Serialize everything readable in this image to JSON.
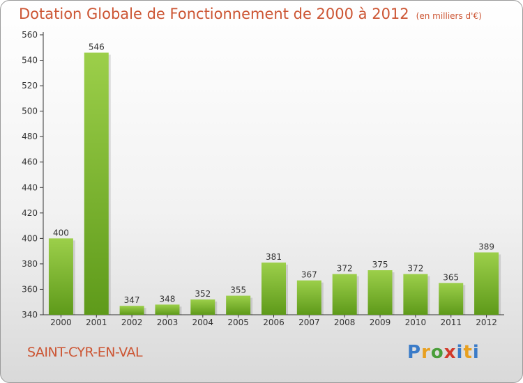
{
  "chart_data": {
    "type": "bar",
    "title": "Dotation Globale de Fonctionnement de 2000 à 2012",
    "unit_note": "(en milliers d'€)",
    "categories": [
      "2000",
      "2001",
      "2002",
      "2003",
      "2004",
      "2005",
      "2006",
      "2007",
      "2008",
      "2009",
      "2010",
      "2011",
      "2012"
    ],
    "values": [
      400,
      546,
      347,
      348,
      352,
      355,
      381,
      367,
      372,
      375,
      372,
      365,
      389
    ],
    "ylim": [
      340,
      560
    ],
    "yticks": [
      340,
      360,
      380,
      400,
      420,
      440,
      460,
      480,
      500,
      520,
      540,
      560
    ],
    "grid": false,
    "bar_color_top": "#9ccf4a",
    "bar_color_bottom": "#5e9a1a"
  },
  "location": "SAINT-CYR-EN-VAL",
  "logo": {
    "letters": [
      "P",
      "r",
      "o",
      "x",
      "i",
      "t",
      "i"
    ]
  },
  "colors": {
    "title": "#cc5533",
    "axis": "#333333"
  }
}
